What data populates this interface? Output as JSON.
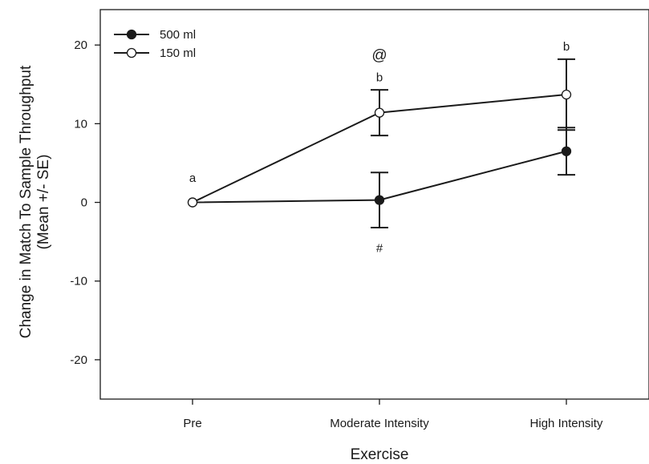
{
  "chart_data": {
    "type": "line",
    "categories": [
      "Pre",
      "Moderate Intensity",
      "High Intensity"
    ],
    "xlabel": "Exercise",
    "ylabel_lines": [
      "Change in Match To Sample Throughput",
      "(Mean +/- SE)"
    ],
    "ylim": [
      -25,
      24.5
    ],
    "yticks": [
      -20,
      -10,
      0,
      10,
      20
    ],
    "grid": false,
    "legend_position": "top-left",
    "series": [
      {
        "name": "500 ml",
        "marker": "filled-circle",
        "values": [
          0,
          0.3,
          6.5
        ],
        "se": [
          null,
          3.5,
          3.0
        ]
      },
      {
        "name": "150 ml",
        "marker": "open-circle",
        "values": [
          0,
          11.4,
          13.7
        ],
        "se": [
          null,
          2.9,
          4.5
        ]
      }
    ],
    "annotations": [
      {
        "text": "a",
        "category": "Pre",
        "y": 2.6
      },
      {
        "text": "@",
        "category": "Moderate Intensity",
        "y": 18.1
      },
      {
        "text": "b",
        "category": "Moderate Intensity",
        "y": 15.4
      },
      {
        "text": "#",
        "category": "Moderate Intensity",
        "y": -6.3
      },
      {
        "text": "b",
        "category": "High Intensity",
        "y": 19.3
      }
    ],
    "colors": {
      "line": "#1a1a1a",
      "open_marker_fill": "#ffffff"
    }
  }
}
